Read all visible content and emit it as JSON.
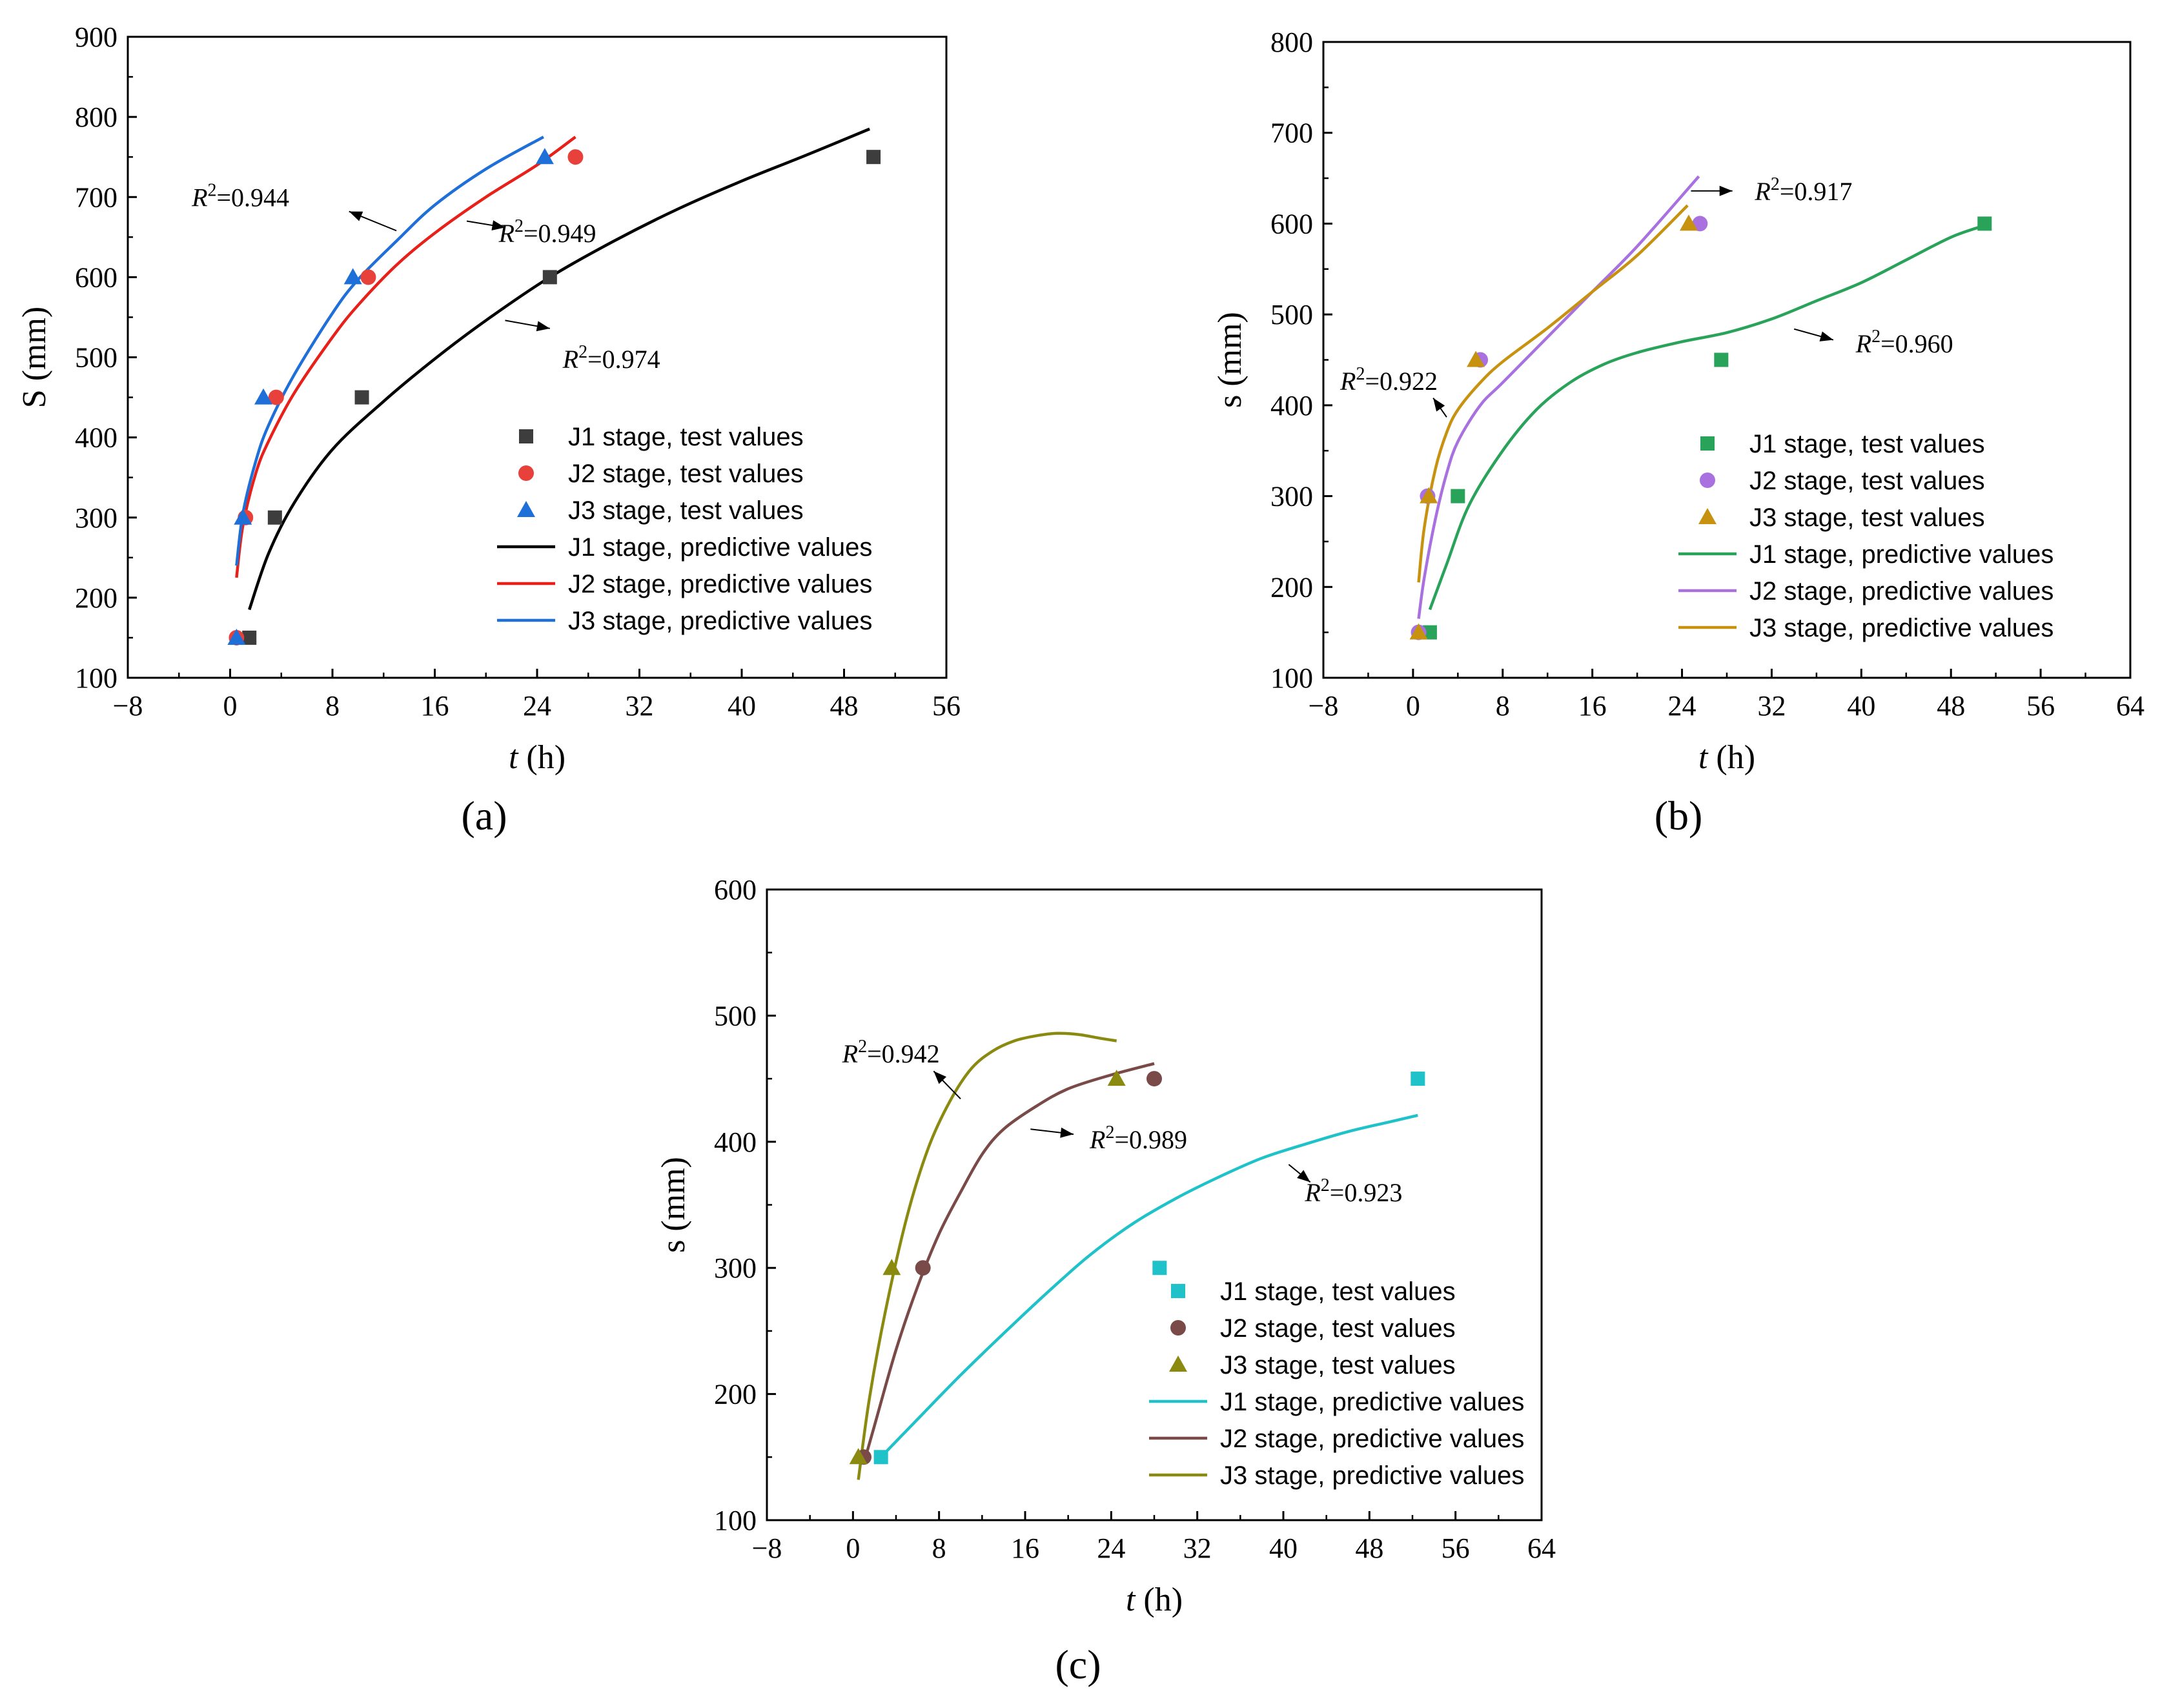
{
  "chart_data": [
    {
      "panel": "(a)",
      "type": "line",
      "title": "",
      "xlabel_italic": "t",
      "xlabel_unit": " (h)",
      "ylabel": "S (mm)",
      "xlim": [
        -8,
        56
      ],
      "ylim": [
        100,
        900
      ],
      "xticks": [
        -8,
        0,
        8,
        16,
        24,
        32,
        40,
        48,
        56
      ],
      "yticks": [
        100,
        200,
        300,
        400,
        500,
        600,
        700,
        800,
        900
      ],
      "legend_position": "bottom-right",
      "scatter_series": [
        {
          "name": "J1 stage, test values",
          "marker": "square",
          "color": "#3d3d3d",
          "x": [
            1.5,
            3.5,
            10.3,
            25.0,
            50.3
          ],
          "y": [
            150,
            300,
            450,
            600,
            750
          ]
        },
        {
          "name": "J2 stage, test values",
          "marker": "circle",
          "color": "#e8403a",
          "x": [
            0.5,
            1.2,
            3.6,
            10.8,
            27.0
          ],
          "y": [
            150,
            300,
            450,
            600,
            750
          ]
        },
        {
          "name": "J3 stage, test values",
          "marker": "triangle",
          "color": "#1f6fd8",
          "x": [
            0.5,
            1.0,
            2.6,
            9.6,
            24.6
          ],
          "y": [
            150,
            300,
            450,
            600,
            750
          ]
        }
      ],
      "line_series": [
        {
          "name": "J1 stage, predictive values",
          "color": "#000000",
          "x": [
            1.5,
            3,
            5,
            8,
            12,
            16,
            20,
            25,
            30,
            35,
            40,
            45,
            50
          ],
          "y": [
            185,
            255,
            318,
            385,
            445,
            498,
            546,
            600,
            645,
            685,
            720,
            752,
            785
          ]
        },
        {
          "name": "J2 stage, predictive values",
          "color": "#e8201a",
          "x": [
            0.5,
            1,
            2,
            3,
            5,
            8,
            10,
            13,
            16,
            20,
            24,
            27
          ],
          "y": [
            225,
            290,
            355,
            395,
            455,
            525,
            565,
            615,
            655,
            700,
            740,
            775
          ]
        },
        {
          "name": "J3 stage, predictive values",
          "color": "#1f6fd8",
          "x": [
            0.5,
            1,
            2,
            3,
            5,
            8,
            10,
            13,
            16,
            20,
            24.5
          ],
          "y": [
            240,
            305,
            370,
            415,
            478,
            555,
            597,
            645,
            690,
            735,
            775
          ]
        }
      ],
      "annotations": [
        {
          "text": "=0.944",
          "label_x": -3,
          "label_y": 700,
          "arrow_from": [
            13,
            658
          ],
          "arrow_to": [
            9.3,
            682
          ]
        },
        {
          "text": "=0.949",
          "label_x": 21,
          "label_y": 655,
          "arrow_from": [
            18.5,
            670
          ],
          "arrow_to": [
            21.5,
            662
          ]
        },
        {
          "text": "=0.974",
          "label_x": 26,
          "label_y": 498,
          "arrow_from": [
            21.5,
            546
          ],
          "arrow_to": [
            25,
            536
          ]
        }
      ]
    },
    {
      "panel": "(b)",
      "type": "line",
      "title": "",
      "xlabel_italic": "t",
      "xlabel_unit": " (h)",
      "ylabel": "s (mm)",
      "xlim": [
        -8,
        64
      ],
      "ylim": [
        100,
        800
      ],
      "xticks": [
        -8,
        0,
        8,
        16,
        24,
        32,
        40,
        48,
        56,
        64
      ],
      "yticks": [
        100,
        200,
        300,
        400,
        500,
        600,
        700,
        800
      ],
      "legend_position": "bottom-right",
      "scatter_series": [
        {
          "name": "J1 stage, test values",
          "marker": "square",
          "color": "#2aa35a",
          "x": [
            1.5,
            4.0,
            27.5,
            51.0
          ],
          "y": [
            150,
            300,
            450,
            600
          ]
        },
        {
          "name": "J2 stage, test values",
          "marker": "circle",
          "color": "#a970e0",
          "x": [
            0.5,
            1.3,
            6.0,
            25.6
          ],
          "y": [
            150,
            300,
            450,
            600
          ]
        },
        {
          "name": "J3 stage, test values",
          "marker": "triangle",
          "color": "#c79210",
          "x": [
            0.5,
            1.4,
            5.6,
            24.6
          ],
          "y": [
            150,
            300,
            450,
            600
          ]
        }
      ],
      "line_series": [
        {
          "name": "J1 stage, predictive values",
          "color": "#2aa35a",
          "x": [
            1.5,
            3,
            5,
            8,
            11,
            14,
            17,
            20,
            24,
            28,
            32,
            36,
            40,
            44,
            48,
            51
          ],
          "y": [
            175,
            225,
            290,
            350,
            395,
            425,
            445,
            458,
            470,
            480,
            495,
            515,
            535,
            560,
            585,
            598
          ]
        },
        {
          "name": "J2 stage, predictive values",
          "color": "#a970e0",
          "x": [
            0.5,
            1,
            2,
            3,
            4,
            6,
            8,
            12,
            16,
            20,
            25.5
          ],
          "y": [
            165,
            210,
            275,
            325,
            360,
            400,
            425,
            475,
            525,
            575,
            652
          ]
        },
        {
          "name": "J3 stage, predictive values",
          "color": "#c79210",
          "x": [
            0.5,
            1,
            2,
            3,
            4,
            6,
            8,
            12,
            16,
            20,
            24.5
          ],
          "y": [
            205,
            265,
            330,
            370,
            395,
            425,
            448,
            485,
            525,
            565,
            620
          ]
        }
      ],
      "annotations": [
        {
          "text": "=0.917",
          "label_x": 30.5,
          "label_y": 636,
          "arrow_from": [
            24.8,
            636
          ],
          "arrow_to": [
            28.5,
            636
          ]
        },
        {
          "text": "=0.922",
          "label_x": -6.5,
          "label_y": 427,
          "arrow_from": [
            3,
            387
          ],
          "arrow_to": [
            1.8,
            408
          ]
        },
        {
          "text": "=0.960",
          "label_x": 39.5,
          "label_y": 468,
          "arrow_from": [
            34,
            484
          ],
          "arrow_to": [
            37.5,
            472
          ]
        }
      ]
    },
    {
      "panel": "(c)",
      "type": "line",
      "title": "",
      "xlabel_italic": "t",
      "xlabel_unit": " (h)",
      "ylabel": "s (mm)",
      "xlim": [
        -8,
        64
      ],
      "ylim": [
        100,
        600
      ],
      "xticks": [
        -8,
        0,
        8,
        16,
        24,
        32,
        40,
        48,
        56,
        64
      ],
      "yticks": [
        100,
        200,
        300,
        400,
        500,
        600
      ],
      "legend_position": "bottom-right",
      "scatter_series": [
        {
          "name": "J1 stage, test values",
          "marker": "square",
          "color": "#1fc2c8",
          "x": [
            2.6,
            28.5,
            52.5
          ],
          "y": [
            150,
            300,
            450
          ]
        },
        {
          "name": "J2 stage, test values",
          "marker": "circle",
          "color": "#7a4a48",
          "x": [
            1.0,
            6.5,
            28.0
          ],
          "y": [
            150,
            300,
            450
          ]
        },
        {
          "name": "J3 stage, test values",
          "marker": "triangle",
          "color": "#8a8a10",
          "x": [
            0.5,
            3.6,
            24.5
          ],
          "y": [
            150,
            300,
            450
          ]
        }
      ],
      "line_series": [
        {
          "name": "J1 stage, predictive values",
          "color": "#1fc2c8",
          "x": [
            2.6,
            6,
            10,
            14,
            18,
            22,
            26,
            30,
            34,
            38,
            42,
            46,
            50,
            52.5
          ],
          "y": [
            150,
            180,
            215,
            248,
            280,
            310,
            335,
            355,
            372,
            387,
            398,
            408,
            416,
            421
          ]
        },
        {
          "name": "J2 stage, predictive values",
          "color": "#7a4a48",
          "x": [
            1.0,
            2,
            4,
            6,
            8,
            10,
            12,
            14,
            17,
            20,
            24,
            28
          ],
          "y": [
            145,
            175,
            235,
            285,
            327,
            360,
            390,
            410,
            428,
            442,
            453,
            462
          ]
        },
        {
          "name": "J3 stage, predictive values",
          "color": "#8a8a10",
          "x": [
            0.5,
            1.5,
            3,
            5,
            7,
            9,
            11,
            13,
            15,
            17,
            19,
            21,
            23,
            24.5
          ],
          "y": [
            132,
            195,
            265,
            340,
            395,
            432,
            458,
            472,
            480,
            484,
            486,
            485,
            482,
            480
          ]
        }
      ],
      "annotations": [
        {
          "text": "=0.942",
          "label_x": -1,
          "label_y": 470,
          "arrow_from": [
            10,
            434
          ],
          "arrow_to": [
            7.5,
            456
          ]
        },
        {
          "text": "=0.989",
          "label_x": 22,
          "label_y": 402,
          "arrow_from": [
            16.5,
            410
          ],
          "arrow_to": [
            20.5,
            406
          ]
        },
        {
          "text": "=0.923",
          "label_x": 42,
          "label_y": 360,
          "arrow_from": [
            40.5,
            382
          ],
          "arrow_to": [
            42.5,
            368
          ]
        }
      ]
    }
  ]
}
